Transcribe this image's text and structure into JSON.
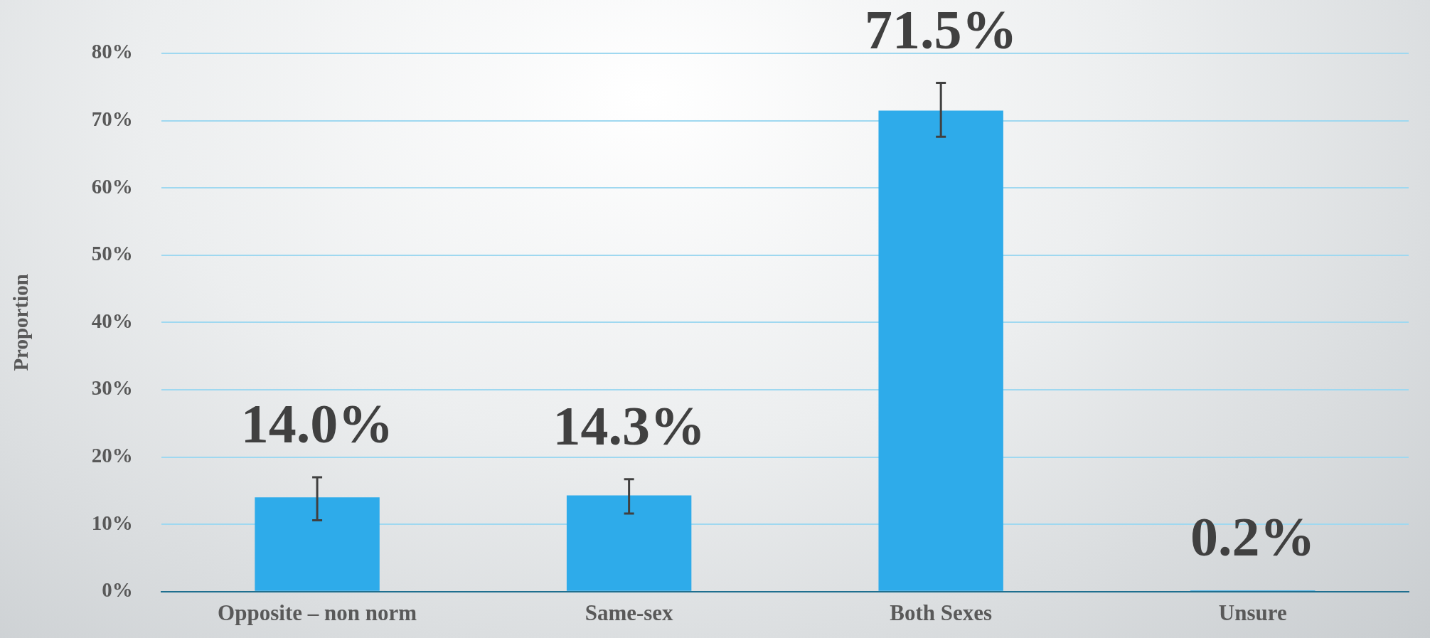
{
  "chart_data": {
    "type": "bar",
    "ylabel": "Proportion",
    "categories": [
      "Opposite – non norm",
      "Same-sex",
      "Both Sexes",
      "Unsure"
    ],
    "values": [
      14.0,
      14.3,
      71.5,
      0.2
    ],
    "color": "#2eabea",
    "errors": [
      [
        10.6,
        17.0
      ],
      [
        11.6,
        16.7
      ],
      [
        67.6,
        75.6
      ],
      null
    ],
    "value_labels": [
      "14.0%",
      "14.3%",
      "71.5%",
      "0.2%"
    ],
    "ylim": [
      0,
      80
    ],
    "yticks": [
      {
        "value": 0,
        "label": "0%"
      },
      {
        "value": 10,
        "label": "10%"
      },
      {
        "value": 20,
        "label": "20%"
      },
      {
        "value": 30,
        "label": "30%"
      },
      {
        "value": 40,
        "label": "40%"
      },
      {
        "value": 50,
        "label": "50%"
      },
      {
        "value": 60,
        "label": "60%"
      },
      {
        "value": 70,
        "label": "70%"
      },
      {
        "value": 80,
        "label": "80%"
      }
    ],
    "grid": "y",
    "legend": false
  }
}
